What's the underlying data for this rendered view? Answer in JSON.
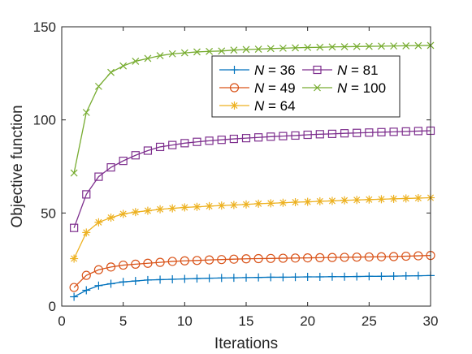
{
  "chart_data": {
    "type": "line",
    "xlabel": "Iterations",
    "ylabel": "Objective function",
    "xlim": [
      0,
      30
    ],
    "ylim": [
      0,
      150
    ],
    "xticks": [
      "0",
      "5",
      "10",
      "15",
      "20",
      "25",
      "30"
    ],
    "yticks": [
      "0",
      "50",
      "100",
      "150"
    ],
    "grid": false,
    "legend_position": "top-right",
    "x": [
      1,
      2,
      3,
      4,
      5,
      6,
      7,
      8,
      9,
      10,
      11,
      12,
      13,
      14,
      15,
      16,
      17,
      18,
      19,
      20,
      21,
      22,
      23,
      24,
      25,
      26,
      27,
      28,
      29,
      30
    ],
    "series": [
      {
        "name": "N = 36",
        "legend_var": "N",
        "legend_val": "= 36",
        "color": "#0072BD",
        "marker": "plus",
        "values": [
          5,
          8.5,
          11,
          12,
          13,
          13.5,
          14,
          14.2,
          14.4,
          14.6,
          14.8,
          15,
          15.1,
          15.2,
          15.3,
          15.4,
          15.5,
          15.5,
          15.6,
          15.7,
          15.7,
          15.8,
          15.8,
          15.9,
          16,
          16,
          16.1,
          16.2,
          16.3,
          16.4
        ]
      },
      {
        "name": "N = 49",
        "legend_var": "N",
        "legend_val": "= 49",
        "color": "#D95319",
        "marker": "circle",
        "values": [
          10,
          16.5,
          19.5,
          21,
          22,
          22.5,
          23,
          23.5,
          24,
          24.3,
          24.5,
          24.8,
          25,
          25.2,
          25.4,
          25.5,
          25.6,
          25.7,
          25.8,
          25.9,
          26,
          26.1,
          26.2,
          26.3,
          26.4,
          26.5,
          26.6,
          26.8,
          27,
          27.2
        ]
      },
      {
        "name": "N = 64",
        "legend_var": "N",
        "legend_val": "= 64",
        "color": "#EDB120",
        "marker": "asterisk",
        "values": [
          25.5,
          39.5,
          45,
          47.5,
          49.5,
          50.5,
          51.2,
          52,
          52.5,
          53,
          53.3,
          53.7,
          54,
          54.3,
          54.6,
          55,
          55.2,
          55.5,
          55.8,
          56,
          56.3,
          56.5,
          56.8,
          57,
          57.2,
          57.4,
          57.6,
          57.8,
          58,
          58.2
        ]
      },
      {
        "name": "N = 81",
        "legend_var": "N",
        "legend_val": "= 81",
        "color": "#7E2F8E",
        "marker": "square",
        "values": [
          42,
          60,
          69.5,
          74.5,
          78,
          81,
          83.5,
          85.5,
          86.5,
          87.5,
          88.2,
          88.8,
          89.3,
          89.8,
          90.2,
          90.6,
          91,
          91.3,
          91.6,
          92,
          92.3,
          92.5,
          92.8,
          93,
          93.2,
          93.4,
          93.6,
          93.8,
          94,
          94.2
        ]
      },
      {
        "name": "N = 100",
        "legend_var": "N",
        "legend_val": "= 100",
        "color": "#77AC30",
        "marker": "cross",
        "values": [
          71.5,
          104,
          118,
          125.5,
          129,
          131.5,
          133,
          134.5,
          135.5,
          136,
          136.5,
          136.8,
          137,
          137.5,
          137.8,
          138,
          138.3,
          138.5,
          138.7,
          138.9,
          139,
          139.2,
          139.3,
          139.4,
          139.5,
          139.6,
          139.7,
          139.8,
          139.9,
          140
        ]
      }
    ]
  }
}
